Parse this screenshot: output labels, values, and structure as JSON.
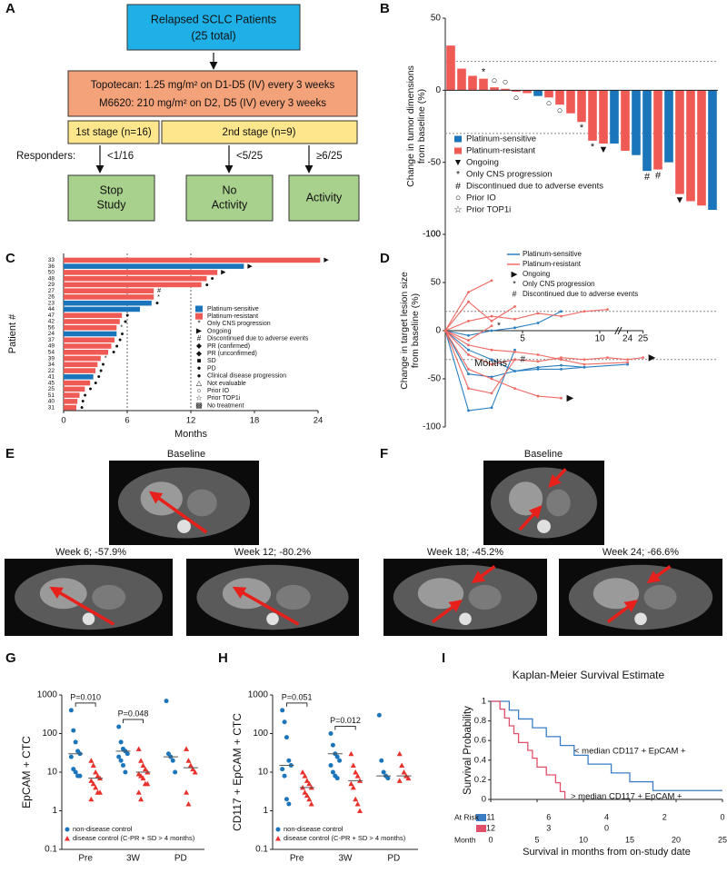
{
  "panel_labels": [
    "A",
    "B",
    "C",
    "D",
    "E",
    "F",
    "G",
    "H",
    "I"
  ],
  "flowchart": {
    "population": [
      "Relapsed SCLC Patients",
      "(25 total)"
    ],
    "regimen": [
      "Topotecan: 1.25 mg/m² on D1-D5 (IV) every 3 weeks",
      "M6620: 210 mg/m² on D2, D5 (IV) every 3 weeks"
    ],
    "stages": [
      "1st stage (n=16)",
      "2nd stage (n=9)"
    ],
    "responders_label": "Responders:",
    "thresholds": [
      "<1/16",
      "<5/25",
      "≥6/25"
    ],
    "outcomes": [
      [
        "Stop",
        "Study"
      ],
      [
        "No",
        "Activity"
      ],
      [
        "Activity"
      ]
    ]
  },
  "chart_data": [
    {
      "type": "waterfall",
      "ylabel": [
        "Change in tumor dimensions",
        "from baseline (%)"
      ],
      "ylim": [
        -100,
        50
      ],
      "yticks": [
        -100,
        -50,
        0,
        50
      ],
      "reference_lines": [
        20,
        -30
      ],
      "values": [
        31,
        15,
        10,
        8,
        2,
        1,
        -1,
        -2,
        -4,
        -5,
        -10,
        -16,
        -22,
        -35,
        -37,
        -37,
        -42,
        -45,
        -56,
        -55,
        -50,
        -72,
        -77,
        -80,
        -83
      ],
      "groups": [
        1,
        1,
        1,
        1,
        1,
        1,
        1,
        1,
        0,
        1,
        1,
        1,
        1,
        1,
        1,
        0,
        1,
        0,
        0,
        1,
        0,
        1,
        1,
        1,
        0
      ],
      "annotations": [
        {
          "bar": 3,
          "text": "*"
        },
        {
          "bar": 4,
          "text": "○"
        },
        {
          "bar": 5,
          "text": "○"
        },
        {
          "bar": 6,
          "text": "○"
        },
        {
          "bar": 9,
          "text": "○"
        },
        {
          "bar": 10,
          "text": "○"
        },
        {
          "bar": 12,
          "text": "*"
        },
        {
          "bar": 13,
          "text": "*"
        },
        {
          "bar": 14,
          "text": "▼"
        },
        {
          "bar": 18,
          "text": "#"
        },
        {
          "bar": 19,
          "text": "#"
        },
        {
          "bar": 21,
          "text": "▼"
        }
      ],
      "legend": [
        {
          "name": "Platinum-sensitive",
          "color": "#1b75bb"
        },
        {
          "name": "Platinum-resistant",
          "color": "#f05a55"
        },
        {
          "name": "Ongoing",
          "symbol": "▼"
        },
        {
          "name": "Only CNS progression",
          "symbol": "*"
        },
        {
          "name": "Discontinued due to adverse events",
          "symbol": "#"
        },
        {
          "name": "Prior IO",
          "symbol": "○"
        },
        {
          "name": "Prior TOP1i",
          "symbol": "☆"
        }
      ]
    },
    {
      "type": "swimmer",
      "xlabel": "Months",
      "ylabel": "Patient #",
      "xlim": [
        0,
        24
      ],
      "xticks": [
        0,
        6,
        12,
        18,
        24
      ],
      "reference_lines": [
        6,
        12
      ],
      "categories": [
        "33",
        "36",
        "50",
        "48",
        "29",
        "27",
        "26",
        "23",
        "44",
        "47",
        "42",
        "56",
        "24",
        "37",
        "49",
        "54",
        "39",
        "34",
        "22",
        "41",
        "45",
        "25",
        "51",
        "40",
        "31"
      ],
      "values": [
        24.2,
        17,
        14.5,
        13.5,
        13,
        8.5,
        8.5,
        8.3,
        7.2,
        5.5,
        5.3,
        5,
        5,
        4.8,
        4.5,
        4.2,
        3.5,
        3.2,
        3,
        2.8,
        2.5,
        2,
        1.5,
        1.3,
        1.2
      ],
      "groups": [
        1,
        0,
        1,
        1,
        1,
        1,
        1,
        0,
        0,
        1,
        1,
        1,
        0,
        1,
        1,
        1,
        1,
        1,
        1,
        0,
        1,
        1,
        1,
        1,
        1
      ],
      "annotations": [
        {
          "bar": 0,
          "text": "▶"
        },
        {
          "bar": 1,
          "text": "▶"
        },
        {
          "bar": 2,
          "text": "▶"
        },
        {
          "bar": 3,
          "text": "●"
        },
        {
          "bar": 4,
          "text": "●"
        },
        {
          "bar": 5,
          "text": "#"
        },
        {
          "bar": 6,
          "text": "*"
        },
        {
          "bar": 7,
          "text": "●"
        },
        {
          "bar": 9,
          "text": "●"
        },
        {
          "bar": 10,
          "text": "●"
        },
        {
          "bar": 11,
          "text": "*"
        },
        {
          "bar": 12,
          "text": "●"
        },
        {
          "bar": 13,
          "text": "●"
        },
        {
          "bar": 14,
          "text": "●"
        },
        {
          "bar": 15,
          "text": "●"
        },
        {
          "bar": 16,
          "text": "*"
        },
        {
          "bar": 17,
          "text": "●"
        },
        {
          "bar": 18,
          "text": "●"
        },
        {
          "bar": 19,
          "text": "●"
        },
        {
          "bar": 20,
          "text": "●"
        },
        {
          "bar": 21,
          "text": "●"
        },
        {
          "bar": 22,
          "text": "●"
        },
        {
          "bar": 23,
          "text": "●"
        },
        {
          "bar": 24,
          "text": "●"
        }
      ],
      "legend": [
        {
          "name": "Platinum-sensitive",
          "color": "#1b75bb"
        },
        {
          "name": "Platinum-resistant",
          "color": "#f05a55"
        },
        {
          "name": "Only CNS progression",
          "symbol": "*"
        },
        {
          "name": "Ongoing",
          "symbol": "▶"
        },
        {
          "name": "Discontinued due to adverse events",
          "symbol": "#"
        },
        {
          "name": "PR (confirmed)",
          "symbol": "◆",
          "color": "#4caf2e"
        },
        {
          "name": "PR (unconfirmed)",
          "symbol": "◆",
          "color": "#a5d65a"
        },
        {
          "name": "SD",
          "symbol": "■",
          "color": "#5b2a86"
        },
        {
          "name": "PD",
          "symbol": "●"
        },
        {
          "name": "Clinical disease progression",
          "symbol": "●",
          "color": "#777777"
        },
        {
          "name": "Not evaluable",
          "symbol": "△"
        },
        {
          "name": "Prior IO",
          "symbol": "○"
        },
        {
          "name": "Prior TOP1i",
          "symbol": "☆"
        },
        {
          "name": "No treatment",
          "symbol": "▩",
          "color": "#888888"
        }
      ]
    },
    {
      "type": "spider",
      "xlabel": "Months",
      "ylabel": [
        "Change in target lesion size",
        "from baseline (%)"
      ],
      "xlim": [
        0,
        25
      ],
      "xticks": [
        5,
        10,
        24,
        25
      ],
      "ylim": [
        -100,
        100
      ],
      "yticks": [
        -100,
        -50,
        0,
        50,
        100
      ],
      "reference_lines": [
        20,
        -30
      ],
      "lines": [
        {
          "group": 0,
          "x": [
            0,
            1.5,
            3,
            4.5
          ],
          "values": [
            0,
            -83,
            -80,
            -20
          ]
        },
        {
          "group": 0,
          "x": [
            0,
            1.5,
            3,
            4.5,
            6,
            7.5,
            9
          ],
          "values": [
            0,
            -45,
            -48,
            -42,
            -40,
            -40,
            -38
          ]
        },
        {
          "group": 0,
          "x": [
            0,
            1.5,
            3,
            4.5,
            6,
            7.5,
            9,
            24
          ],
          "values": [
            0,
            -20,
            -30,
            -42,
            -38,
            -36,
            -38,
            -35
          ]
        },
        {
          "group": 0,
          "x": [
            0,
            1.5,
            3,
            4.5,
            6,
            7.5
          ],
          "values": [
            0,
            -5,
            0,
            3,
            8,
            20
          ]
        },
        {
          "group": 1,
          "x": [
            0,
            1.5,
            3,
            4.5,
            6,
            7.5,
            9,
            10.5,
            24,
            25
          ],
          "values": [
            0,
            -25,
            -35,
            -30,
            -32,
            -28,
            -30,
            -28,
            -30,
            -28
          ]
        },
        {
          "group": 1,
          "x": [
            0,
            1.5,
            3,
            4.5,
            6,
            7.5
          ],
          "values": [
            0,
            -40,
            -50,
            -60,
            -68,
            -70
          ]
        },
        {
          "group": 1,
          "x": [
            0,
            1.5,
            3
          ],
          "values": [
            0,
            40,
            52
          ]
        },
        {
          "group": 1,
          "x": [
            0,
            1.5,
            3,
            4.5
          ],
          "values": [
            0,
            30,
            10,
            25
          ]
        },
        {
          "group": 1,
          "x": [
            0,
            1.5,
            3,
            4.5,
            6,
            7.5,
            9,
            10.5
          ],
          "values": [
            0,
            10,
            15,
            12,
            18,
            15,
            20,
            22
          ]
        },
        {
          "group": 1,
          "x": [
            0,
            1.5,
            3,
            4.5
          ],
          "values": [
            0,
            -60,
            -65,
            -30
          ]
        },
        {
          "group": 1,
          "x": [
            0,
            1.5,
            3,
            4.5,
            6,
            7.5,
            9,
            24
          ],
          "values": [
            0,
            -15,
            -20,
            -22,
            -25,
            -30,
            -35,
            -33
          ]
        },
        {
          "group": 1,
          "x": [
            0,
            1.5,
            3
          ],
          "values": [
            0,
            -10,
            5
          ]
        }
      ],
      "annotations": [
        {
          "line": 4,
          "text": "▶"
        },
        {
          "line": 5,
          "text": "▶"
        },
        {
          "line": 11,
          "text": "*"
        },
        {
          "line": 9,
          "text": "#"
        }
      ],
      "legend": [
        {
          "name": "Platinum-sensitive",
          "color": "#2a7fc0"
        },
        {
          "name": "Platinum-resistant",
          "color": "#f06a64"
        },
        {
          "name": "Ongoing",
          "symbol": "▶"
        },
        {
          "name": "Only CNS progression",
          "symbol": "*"
        },
        {
          "name": "Discontinued due to adverse events",
          "symbol": "#"
        }
      ]
    },
    {
      "type": "dot",
      "ylabel": "EpCAM + CTC",
      "log_scale": true,
      "ylim": [
        0.1,
        1000
      ],
      "yticks": [
        0.1,
        1,
        10,
        100,
        1000
      ],
      "categories": [
        "Pre",
        "3W",
        "PD"
      ],
      "series": [
        {
          "name": "non-disease control",
          "color": "#1b75bb",
          "marker": "circle",
          "values": [
            [
              400,
              120,
              60,
              35,
              30,
              25,
              12,
              10,
              8,
              8
            ],
            [
              150,
              60,
              40,
              35,
              30,
              25,
              20,
              15,
              10
            ],
            [
              700,
              30,
              25,
              20,
              10
            ]
          ],
          "medians": [
            30,
            35,
            25
          ]
        },
        {
          "name": "disease control (C-PR + SD > 4 months)",
          "color": "#e8312b",
          "marker": "triangle",
          "values": [
            [
              20,
              15,
              10,
              8,
              7,
              6,
              5,
              4,
              3,
              3,
              2
            ],
            [
              40,
              20,
              15,
              12,
              10,
              9,
              8,
              7,
              5,
              5,
              3,
              2
            ],
            [
              40,
              20,
              15,
              12,
              10,
              3,
              1.5
            ]
          ],
          "medians": [
            7,
            10,
            13
          ]
        }
      ],
      "annotations": [
        {
          "category": 0,
          "text": "P=0.010"
        },
        {
          "category": 1,
          "text": "P=0.048"
        }
      ]
    },
    {
      "type": "dot",
      "ylabel": "CD117 + EpCAM + CTC",
      "log_scale": true,
      "ylim": [
        0.1,
        1000
      ],
      "yticks": [
        0.1,
        1,
        10,
        100,
        1000
      ],
      "categories": [
        "Pre",
        "3W",
        "PD"
      ],
      "series": [
        {
          "name": "non-disease control",
          "color": "#1b75bb",
          "marker": "circle",
          "values": [
            [
              400,
              200,
              80,
              20,
              15,
              12,
              8,
              2,
              1.5
            ],
            [
              100,
              50,
              30,
              25,
              20,
              15,
              10,
              8,
              7
            ],
            [
              300,
              20,
              10,
              8,
              7
            ]
          ],
          "medians": [
            15,
            30,
            8
          ]
        },
        {
          "name": "disease control (C-PR + SD > 4 months)",
          "color": "#e8312b",
          "marker": "triangle",
          "values": [
            [
              10,
              8,
              6,
              5,
              4,
              4,
              3,
              2.5,
              2,
              1.5
            ],
            [
              30,
              15,
              10,
              8,
              6,
              5,
              4,
              2,
              1.5,
              1
            ],
            [
              30,
              15,
              10,
              8,
              7,
              6
            ]
          ],
          "medians": [
            4,
            6,
            8
          ]
        }
      ],
      "annotations": [
        {
          "category": 0,
          "text": "P=0.051"
        },
        {
          "category": 1,
          "text": "P=0.012"
        }
      ]
    },
    {
      "type": "kaplan-meier",
      "title": "Kaplan-Meier Survival Estimate",
      "ylabel": "Survival Probability",
      "xlabel": "Survival in months from on-study date",
      "xlim": [
        0,
        25
      ],
      "xticks": [
        0,
        5,
        10,
        15,
        20,
        25
      ],
      "ylim": [
        0,
        1
      ],
      "yticks": [
        0,
        0.2,
        0.4,
        0.6,
        0.8,
        1
      ],
      "at_risk_label": "At Risk",
      "month_label": "Month",
      "at_risk_times": [
        0,
        6.25,
        12.5,
        18.75,
        25
      ],
      "series": [
        {
          "name": "< median CD117 + EpCAM +",
          "color": "#3b7dc4",
          "x": [
            0,
            2,
            3,
            4.5,
            6,
            7.5,
            9,
            10.5,
            13,
            15,
            17.5,
            25
          ],
          "values": [
            1,
            0.91,
            0.82,
            0.73,
            0.64,
            0.55,
            0.45,
            0.36,
            0.27,
            0.18,
            0.09,
            0.09
          ],
          "at_risk": [
            11,
            6,
            4,
            2,
            0
          ]
        },
        {
          "name": "> median CD117 + EpCAM +",
          "color": "#e0506a",
          "x": [
            0,
            1,
            1.5,
            2,
            2.5,
            3,
            4,
            4.5,
            5,
            6,
            7,
            7.5,
            8
          ],
          "values": [
            1,
            0.92,
            0.83,
            0.75,
            0.67,
            0.58,
            0.5,
            0.42,
            0.33,
            0.25,
            0.17,
            0.08,
            0
          ],
          "at_risk": [
            12,
            3,
            0
          ]
        }
      ]
    }
  ],
  "images": [
    {
      "captions": [
        "Baseline",
        "Week 6; -57.9%",
        "Week 12; -80.2%"
      ]
    },
    {
      "captions": [
        "Baseline",
        "Week 18; -45.2%",
        "Week 24; -66.6%"
      ]
    }
  ]
}
